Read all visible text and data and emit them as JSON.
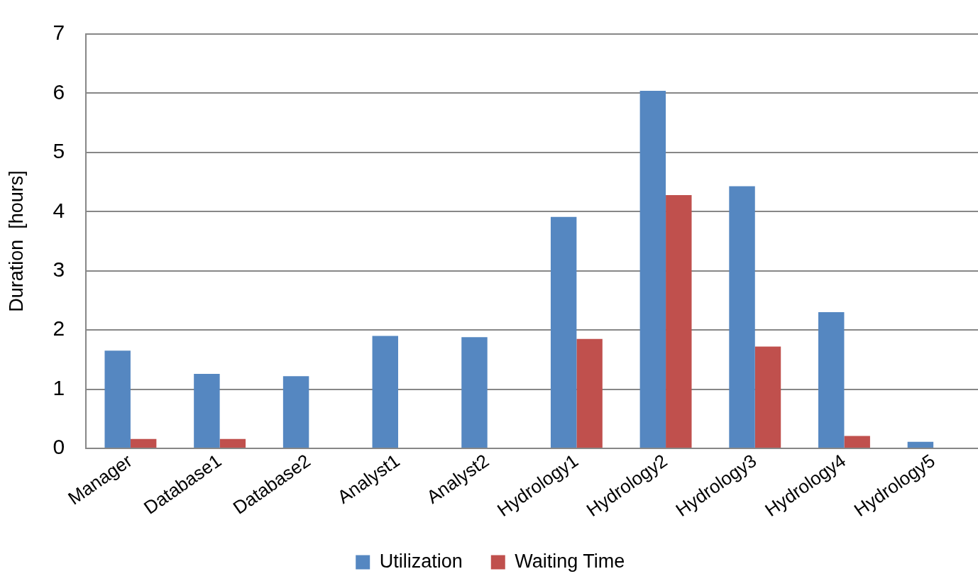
{
  "chart_data": {
    "type": "bar",
    "ylabel": "Duration  [hours]",
    "categories": [
      "Manager",
      "Database1",
      "Database2",
      "Analyst1",
      "Analyst2",
      "Hydrology1",
      "Hydrology2",
      "Hydrology3",
      "Hydrology4",
      "Hydrology5"
    ],
    "series": [
      {
        "name": "Utilization",
        "color": "#5587c1",
        "values": [
          1.65,
          1.26,
          1.22,
          1.9,
          1.88,
          3.91,
          6.04,
          4.43,
          2.3,
          0.11
        ]
      },
      {
        "name": "Waiting Time",
        "color": "#c0504d",
        "values": [
          0.16,
          0.16,
          0,
          0,
          0,
          1.85,
          4.28,
          1.72,
          0.21,
          0
        ]
      }
    ],
    "ylim": [
      0,
      7
    ],
    "yticks": [
      0,
      1,
      2,
      3,
      4,
      5,
      6,
      7
    ],
    "grid": "y",
    "legend": "bottom"
  }
}
